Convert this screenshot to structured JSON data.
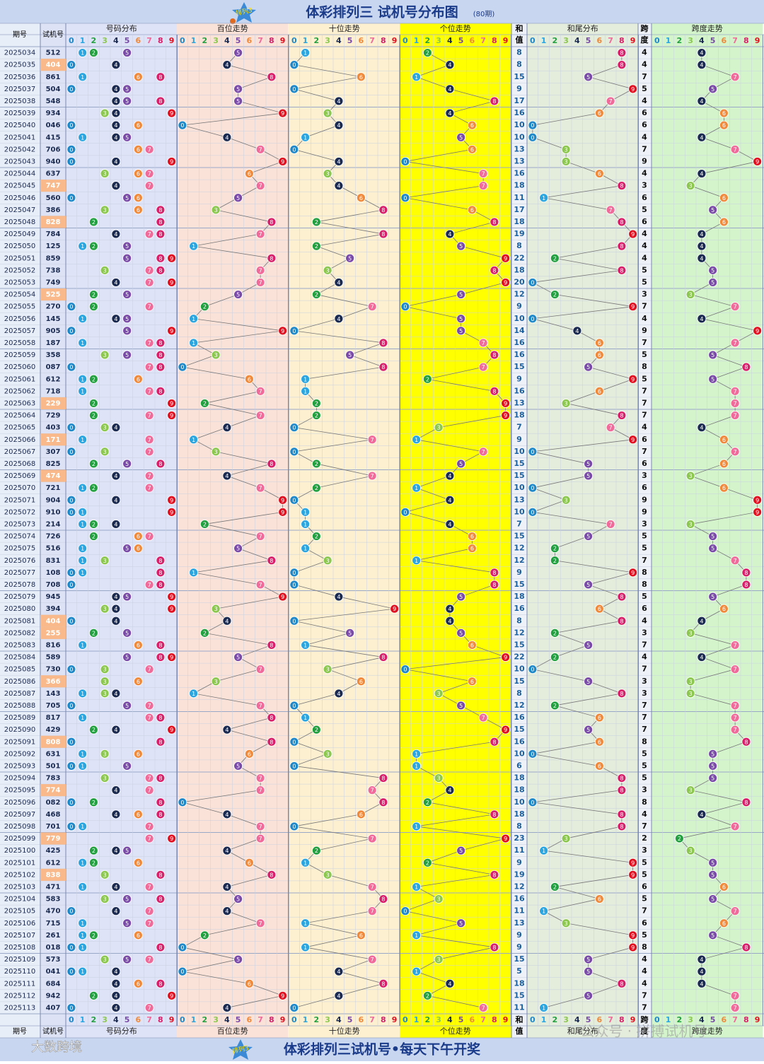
{
  "header": {
    "logo": "排列3",
    "title": "体彩排列三 试机号分布图",
    "issues": "(80期)"
  },
  "columns": {
    "period": "期号",
    "number": "试机号",
    "distribution": "号码分布",
    "hundreds": "百位走势",
    "tens": "十位走势",
    "ones": "个位走势",
    "sum": [
      "和",
      "值"
    ],
    "sum_tail": "和尾分布",
    "span": [
      "跨",
      "度"
    ],
    "span_trend": "跨度走势",
    "digits": [
      0,
      1,
      2,
      3,
      4,
      5,
      6,
      7,
      8,
      9
    ]
  },
  "rows": [
    [
      "2025034",
      "512",
      [
        5,
        1,
        2
      ],
      8,
      8,
      4
    ],
    [
      "2025035",
      "404",
      [
        4,
        0,
        4
      ],
      8,
      8,
      4
    ],
    [
      "2025036",
      "861",
      [
        8,
        6,
        1
      ],
      15,
      5,
      7
    ],
    [
      "2025037",
      "504",
      [
        5,
        0,
        4
      ],
      9,
      9,
      5
    ],
    [
      "2025038",
      "548",
      [
        5,
        4,
        8
      ],
      17,
      7,
      4
    ],
    [
      "2025039",
      "934",
      [
        9,
        3,
        4
      ],
      16,
      6,
      6
    ],
    [
      "2025040",
      "046",
      [
        0,
        4,
        6
      ],
      10,
      0,
      6
    ],
    [
      "2025041",
      "415",
      [
        4,
        1,
        5
      ],
      10,
      0,
      4
    ],
    [
      "2025042",
      "706",
      [
        7,
        0,
        6
      ],
      13,
      3,
      7
    ],
    [
      "2025043",
      "940",
      [
        9,
        4,
        0
      ],
      13,
      3,
      9
    ],
    [
      "2025044",
      "637",
      [
        6,
        3,
        7
      ],
      16,
      6,
      4
    ],
    [
      "2025045",
      "747",
      [
        7,
        4,
        7
      ],
      18,
      8,
      3
    ],
    [
      "2025046",
      "560",
      [
        5,
        6,
        0
      ],
      11,
      1,
      6
    ],
    [
      "2025047",
      "386",
      [
        3,
        8,
        6
      ],
      17,
      7,
      5
    ],
    [
      "2025048",
      "828",
      [
        8,
        2,
        8
      ],
      18,
      8,
      6
    ],
    [
      "2025049",
      "784",
      [
        7,
        8,
        4
      ],
      19,
      9,
      4
    ],
    [
      "2025050",
      "125",
      [
        1,
        2,
        5
      ],
      8,
      8,
      4
    ],
    [
      "2025051",
      "859",
      [
        8,
        5,
        9
      ],
      22,
      2,
      4
    ],
    [
      "2025052",
      "738",
      [
        7,
        3,
        8
      ],
      18,
      8,
      5
    ],
    [
      "2025053",
      "749",
      [
        7,
        4,
        9
      ],
      20,
      0,
      5
    ],
    [
      "2025054",
      "525",
      [
        5,
        2,
        5
      ],
      12,
      2,
      3
    ],
    [
      "2025055",
      "270",
      [
        2,
        7,
        0
      ],
      9,
      9,
      7
    ],
    [
      "2025056",
      "145",
      [
        1,
        4,
        5
      ],
      10,
      0,
      4
    ],
    [
      "2025057",
      "905",
      [
        9,
        0,
        5
      ],
      14,
      4,
      9
    ],
    [
      "2025058",
      "187",
      [
        1,
        8,
        7
      ],
      16,
      6,
      7
    ],
    [
      "2025059",
      "358",
      [
        3,
        5,
        8
      ],
      16,
      6,
      5
    ],
    [
      "2025060",
      "087",
      [
        0,
        8,
        7
      ],
      15,
      5,
      8
    ],
    [
      "2025061",
      "612",
      [
        6,
        1,
        2
      ],
      9,
      9,
      5
    ],
    [
      "2025062",
      "718",
      [
        7,
        1,
        8
      ],
      16,
      6,
      7
    ],
    [
      "2025063",
      "229",
      [
        2,
        2,
        9
      ],
      13,
      3,
      7
    ],
    [
      "2025064",
      "729",
      [
        7,
        2,
        9
      ],
      18,
      8,
      7
    ],
    [
      "2025065",
      "403",
      [
        4,
        0,
        3
      ],
      7,
      7,
      4
    ],
    [
      "2025066",
      "171",
      [
        1,
        7,
        1
      ],
      9,
      9,
      6
    ],
    [
      "2025067",
      "307",
      [
        3,
        0,
        7
      ],
      10,
      0,
      7
    ],
    [
      "2025068",
      "825",
      [
        8,
        2,
        5
      ],
      15,
      5,
      6
    ],
    [
      "2025069",
      "474",
      [
        4,
        7,
        4
      ],
      15,
      5,
      3
    ],
    [
      "2025070",
      "721",
      [
        7,
        2,
        1
      ],
      10,
      0,
      6
    ],
    [
      "2025071",
      "904",
      [
        9,
        0,
        4
      ],
      13,
      3,
      9
    ],
    [
      "2025072",
      "910",
      [
        9,
        1,
        0
      ],
      10,
      0,
      9
    ],
    [
      "2025073",
      "214",
      [
        2,
        1,
        4
      ],
      7,
      7,
      3
    ],
    [
      "2025074",
      "726",
      [
        7,
        2,
        6
      ],
      15,
      5,
      5
    ],
    [
      "2025075",
      "516",
      [
        5,
        1,
        6
      ],
      12,
      2,
      5
    ],
    [
      "2025076",
      "831",
      [
        8,
        3,
        1
      ],
      12,
      2,
      7
    ],
    [
      "2025077",
      "108",
      [
        1,
        0,
        8
      ],
      9,
      9,
      8
    ],
    [
      "2025078",
      "708",
      [
        7,
        0,
        8
      ],
      15,
      5,
      8
    ],
    [
      "2025079",
      "945",
      [
        9,
        4,
        5
      ],
      18,
      8,
      5
    ],
    [
      "2025080",
      "394",
      [
        3,
        9,
        4
      ],
      16,
      6,
      6
    ],
    [
      "2025081",
      "404",
      [
        4,
        0,
        4
      ],
      8,
      8,
      4
    ],
    [
      "2025082",
      "255",
      [
        2,
        5,
        5
      ],
      12,
      2,
      3
    ],
    [
      "2025083",
      "816",
      [
        8,
        1,
        6
      ],
      15,
      5,
      7
    ],
    [
      "2025084",
      "589",
      [
        5,
        8,
        9
      ],
      22,
      2,
      4
    ],
    [
      "2025085",
      "730",
      [
        7,
        3,
        0
      ],
      10,
      0,
      7
    ],
    [
      "2025086",
      "366",
      [
        3,
        6,
        6
      ],
      15,
      5,
      3
    ],
    [
      "2025087",
      "143",
      [
        1,
        4,
        3
      ],
      8,
      8,
      3
    ],
    [
      "2025088",
      "705",
      [
        7,
        0,
        5
      ],
      12,
      2,
      7
    ],
    [
      "2025089",
      "817",
      [
        8,
        1,
        7
      ],
      16,
      6,
      7
    ],
    [
      "2025090",
      "429",
      [
        4,
        2,
        9
      ],
      15,
      5,
      7
    ],
    [
      "2025091",
      "808",
      [
        8,
        0,
        8
      ],
      16,
      6,
      8
    ],
    [
      "2025092",
      "631",
      [
        6,
        3,
        1
      ],
      10,
      0,
      5
    ],
    [
      "2025093",
      "501",
      [
        5,
        0,
        1
      ],
      6,
      6,
      5
    ],
    [
      "2025094",
      "783",
      [
        7,
        8,
        3
      ],
      18,
      8,
      5
    ],
    [
      "2025095",
      "774",
      [
        7,
        7,
        4
      ],
      18,
      8,
      3
    ],
    [
      "2025096",
      "082",
      [
        0,
        8,
        2
      ],
      10,
      0,
      8
    ],
    [
      "2025097",
      "468",
      [
        4,
        6,
        8
      ],
      18,
      8,
      4
    ],
    [
      "2025098",
      "701",
      [
        7,
        0,
        1
      ],
      8,
      8,
      7
    ],
    [
      "2025099",
      "779",
      [
        7,
        7,
        9
      ],
      23,
      3,
      2
    ],
    [
      "2025100",
      "425",
      [
        4,
        2,
        5
      ],
      11,
      1,
      3
    ],
    [
      "2025101",
      "612",
      [
        6,
        1,
        2
      ],
      9,
      9,
      5
    ],
    [
      "2025102",
      "838",
      [
        8,
        3,
        8
      ],
      19,
      9,
      5
    ],
    [
      "2025103",
      "471",
      [
        4,
        7,
        1
      ],
      12,
      2,
      6
    ],
    [
      "2025104",
      "583",
      [
        5,
        8,
        3
      ],
      16,
      6,
      5
    ],
    [
      "2025105",
      "470",
      [
        4,
        7,
        0
      ],
      11,
      1,
      7
    ],
    [
      "2025106",
      "715",
      [
        7,
        1,
        5
      ],
      13,
      3,
      6
    ],
    [
      "2025107",
      "261",
      [
        2,
        6,
        1
      ],
      9,
      9,
      5
    ],
    [
      "2025108",
      "018",
      [
        0,
        1,
        8
      ],
      9,
      9,
      8
    ],
    [
      "2025109",
      "573",
      [
        5,
        7,
        3
      ],
      15,
      5,
      4
    ],
    [
      "2025110",
      "041",
      [
        0,
        4,
        1
      ],
      5,
      5,
      4
    ],
    [
      "2025111",
      "684",
      [
        6,
        8,
        4
      ],
      18,
      8,
      4
    ],
    [
      "2025112",
      "942",
      [
        9,
        4,
        2
      ],
      15,
      5,
      7
    ],
    [
      "2025113",
      "407",
      [
        4,
        0,
        7
      ],
      11,
      1,
      7
    ]
  ],
  "footer": {
    "logo": "排列3",
    "slogan": "体彩排列三试机号•每天下午开奖",
    "brand": "大数跨境",
    "watermark": "公众号 · 拼搏试机号"
  }
}
